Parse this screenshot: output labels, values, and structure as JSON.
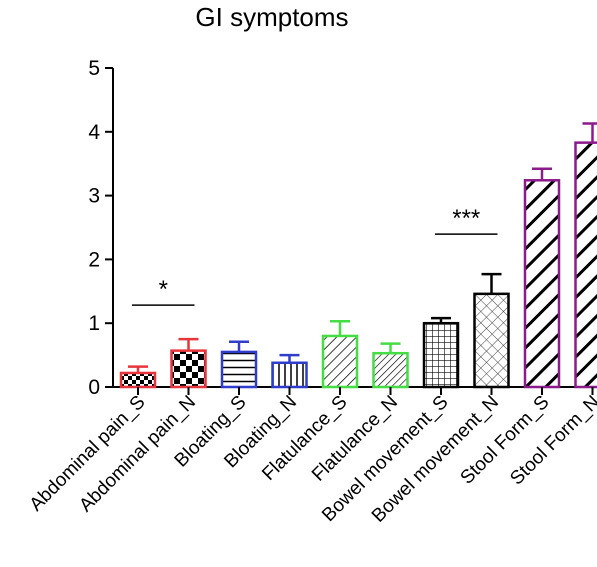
{
  "chart_data": {
    "type": "bar",
    "title": "GI symptoms",
    "xlabel": "",
    "ylabel": "",
    "ylim": [
      0,
      5
    ],
    "yticks": [
      "0",
      "1",
      "2",
      "3",
      "4",
      "5"
    ],
    "grid": false,
    "legend": "none",
    "categories": [
      "Abdominal pain_S",
      "Abdominal pain_N",
      "Bloating_S",
      "Bloating_N",
      "Flatulance_S",
      "Flatulance_N",
      "Bowel movement_S",
      "Bowel movement_N",
      "Stool Form_S",
      "Stool Form_N"
    ],
    "values": [
      0.22,
      0.57,
      0.55,
      0.38,
      0.8,
      0.53,
      1.0,
      1.46,
      3.24,
      3.83
    ],
    "errors": [
      0.1,
      0.18,
      0.16,
      0.12,
      0.23,
      0.15,
      0.08,
      0.31,
      0.18,
      0.3
    ],
    "colors": [
      "#e8343c",
      "#e8343c",
      "#2f3ccc",
      "#2f3ccc",
      "#44dd44",
      "#44dd44",
      "#000000",
      "#000000",
      "#8b1a8b",
      "#8b1a8b"
    ],
    "patterns": [
      "checker-small",
      "checker-large",
      "hlines",
      "vlines",
      "diag-thin",
      "diag-thin-dense",
      "grid",
      "crosshatch-light",
      "diag-thick",
      "diag-thick"
    ],
    "annotations": [
      {
        "text": "*",
        "from": 0,
        "to": 1
      },
      {
        "text": "***",
        "from": 6,
        "to": 7
      }
    ]
  }
}
